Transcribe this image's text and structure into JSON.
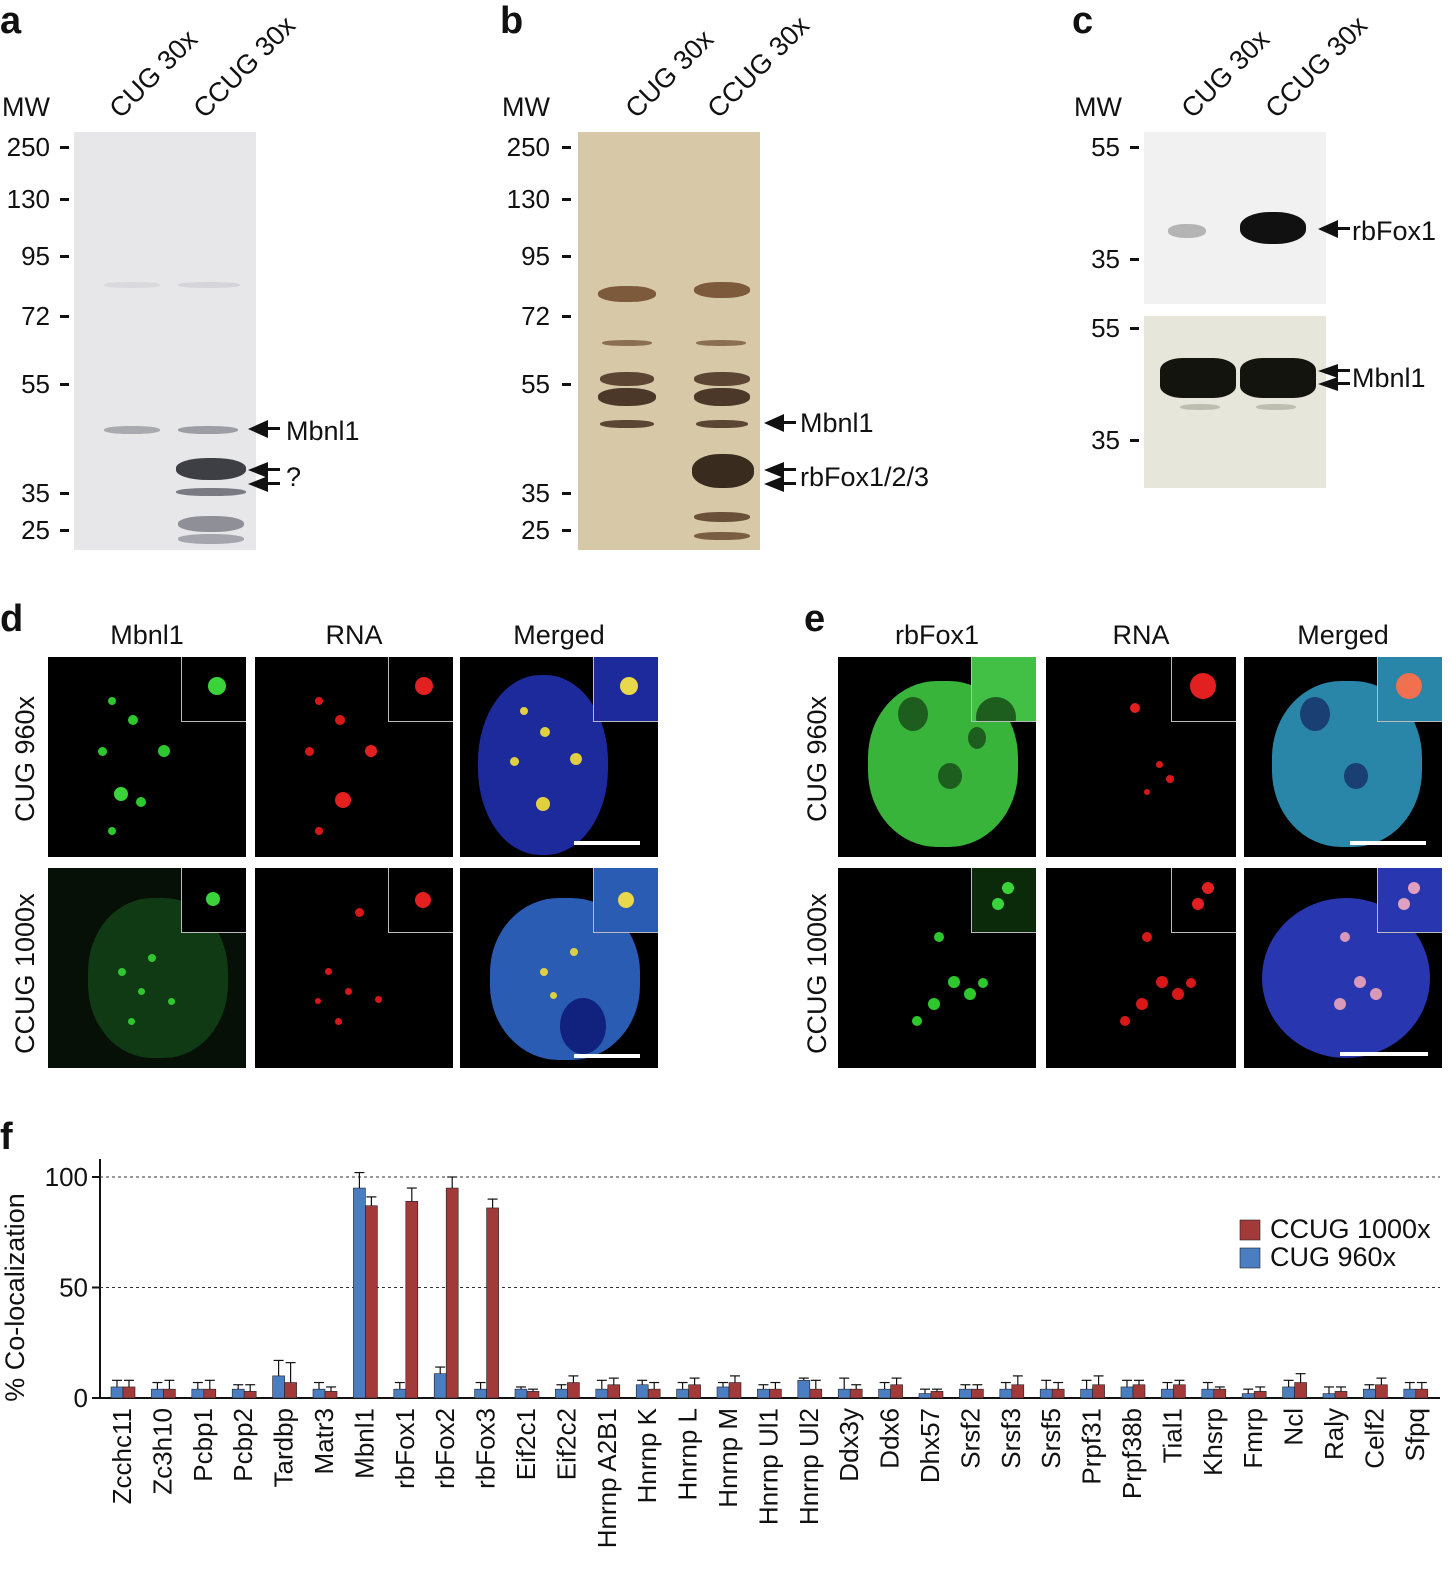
{
  "panels": {
    "a": {
      "letter": "a",
      "mw_label": "MW",
      "lanes": [
        "CUG 30x",
        "CCUG 30x"
      ],
      "mw_ticks": [
        "250",
        "130",
        "95",
        "72",
        "55",
        "35",
        "25"
      ],
      "annotations": [
        "Mbnl1",
        "?"
      ]
    },
    "b": {
      "letter": "b",
      "mw_label": "MW",
      "lanes": [
        "CUG 30x",
        "CCUG 30x"
      ],
      "mw_ticks": [
        "250",
        "130",
        "95",
        "72",
        "55",
        "35",
        "25"
      ],
      "annotations": [
        "Mbnl1",
        "rbFox1/2/3"
      ]
    },
    "c": {
      "letter": "c",
      "mw_label": "MW",
      "lanes": [
        "CUG 30x",
        "CCUG 30x"
      ],
      "top_ticks": [
        "55",
        "35"
      ],
      "bottom_ticks": [
        "55",
        "35"
      ],
      "annotations": [
        "rbFox1",
        "Mbnl1"
      ]
    },
    "d": {
      "letter": "d",
      "columns": [
        "Mbnl1",
        "RNA",
        "Merged"
      ],
      "rows": [
        "CUG 960x",
        "CCUG 1000x"
      ]
    },
    "e": {
      "letter": "e",
      "columns": [
        "rbFox1",
        "RNA",
        "Merged"
      ],
      "rows": [
        "CUG 960x",
        "CCUG 1000x"
      ]
    },
    "f": {
      "letter": "f"
    }
  },
  "colors": {
    "ccug": "#a23a3a",
    "cug": "#4a7ec0"
  },
  "chart_data": {
    "type": "bar",
    "ylabel": "% Co-localization",
    "yticks": [
      "0",
      "50",
      "100"
    ],
    "ylim": [
      0,
      100
    ],
    "grid": "dashed at 50 and 100",
    "legend_placement": "right",
    "categories": [
      "Zcchc11",
      "Zc3h10",
      "Pcbp1",
      "Pcbp2",
      "Tardbp",
      "Matr3",
      "Mbnl1",
      "rbFox1",
      "rbFox2",
      "rbFox3",
      "Eif2c1",
      "Eif2c2",
      "Hnrnp A2B1",
      "Hnrnp K",
      "Hnrnp L",
      "Hnrnp M",
      "Hnrnp Ul1",
      "Hnrnp Ul2",
      "Ddx3y",
      "Ddx6",
      "Dhx57",
      "Srsf2",
      "Srsf3",
      "Srsf5",
      "Prpf31",
      "Prpf38b",
      "Tial1",
      "Khsrp",
      "Fmrp",
      "Ncl",
      "Raly",
      "Celf2",
      "Sfpq"
    ],
    "series": [
      {
        "name": "CUG 960x",
        "values": [
          5,
          4,
          4,
          4,
          10,
          4,
          95,
          4,
          11,
          4,
          4,
          4,
          4,
          6,
          4,
          5,
          4,
          8,
          4,
          4,
          2,
          4,
          4,
          4,
          4,
          5,
          4,
          4,
          2,
          5,
          2,
          4,
          4
        ],
        "errors": [
          3,
          3,
          3,
          2,
          7,
          3,
          7,
          3,
          3,
          3,
          1,
          2,
          4,
          2,
          3,
          2,
          2,
          1,
          5,
          3,
          2,
          2,
          3,
          4,
          4,
          3,
          3,
          3,
          2,
          3,
          3,
          2,
          3
        ]
      },
      {
        "name": "CCUG 1000x",
        "values": [
          5,
          4,
          4,
          3,
          7,
          3,
          87,
          89,
          95,
          86,
          3,
          7,
          6,
          4,
          6,
          7,
          4,
          4,
          4,
          6,
          3,
          4,
          6,
          4,
          6,
          6,
          6,
          4,
          3,
          7,
          3,
          6,
          4
        ],
        "errors": [
          3,
          4,
          4,
          3,
          9,
          2,
          4,
          6,
          5,
          4,
          1,
          3,
          3,
          3,
          3,
          3,
          3,
          4,
          2,
          3,
          1,
          2,
          4,
          3,
          4,
          2,
          2,
          1,
          2,
          4,
          2,
          3,
          3
        ]
      }
    ]
  }
}
